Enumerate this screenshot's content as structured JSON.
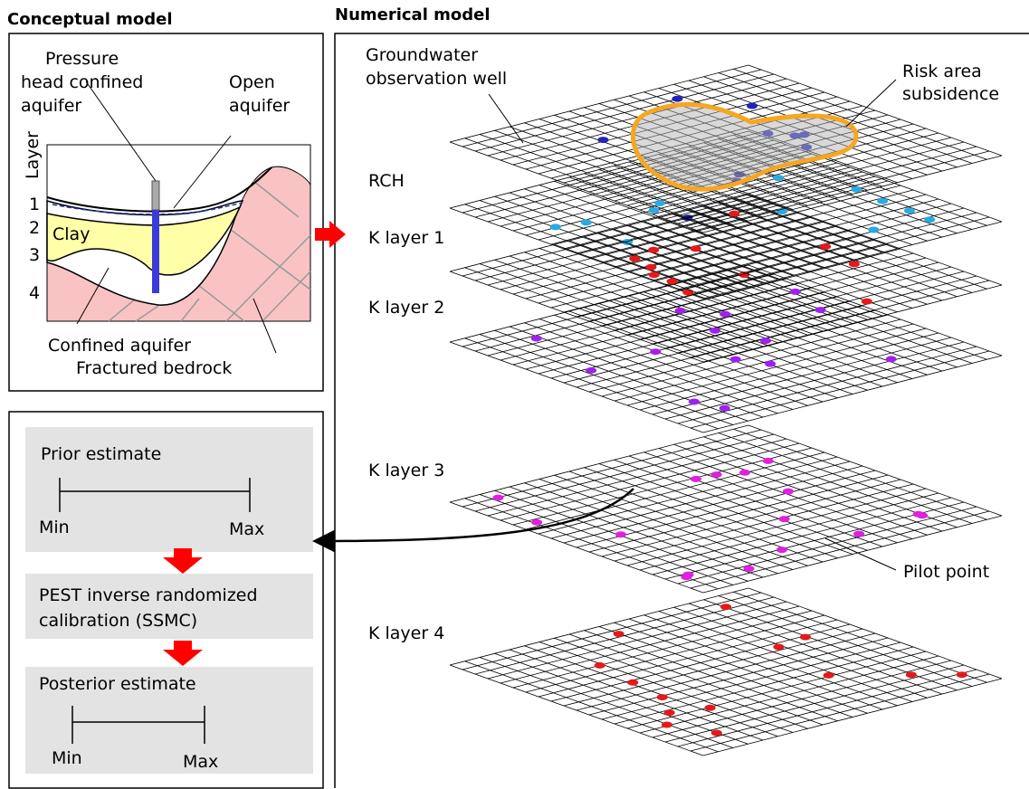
{
  "headings": {
    "conceptual": "Conceptual model",
    "numerical": "Numerical model"
  },
  "conceptual": {
    "pressure_label": [
      "Pressure",
      "head confined",
      "aquifer"
    ],
    "open_label": [
      "Open",
      "aquifer"
    ],
    "layer_axis": "Layer",
    "layers": [
      "1",
      "2",
      "3",
      "4"
    ],
    "clay": "Clay",
    "confined": "Confined aquifer",
    "bedrock": "Fractured bedrock"
  },
  "numerical": {
    "well_label": [
      "Groundwater",
      "observation well"
    ],
    "risk_label": [
      "Risk area",
      "subsidence"
    ],
    "layers": [
      "RCH",
      "K layer 1",
      "K layer 2",
      "K layer 3",
      "K layer 4"
    ],
    "pilot_label": "Pilot point"
  },
  "workflow": {
    "prior": {
      "title": "Prior estimate",
      "min": "Min",
      "max": "Max"
    },
    "calibration": [
      "PEST inverse randomized",
      "calibration (SSMC)"
    ],
    "posterior": {
      "title": "Posterior estimate",
      "min": "Min",
      "max": "Max"
    }
  }
}
